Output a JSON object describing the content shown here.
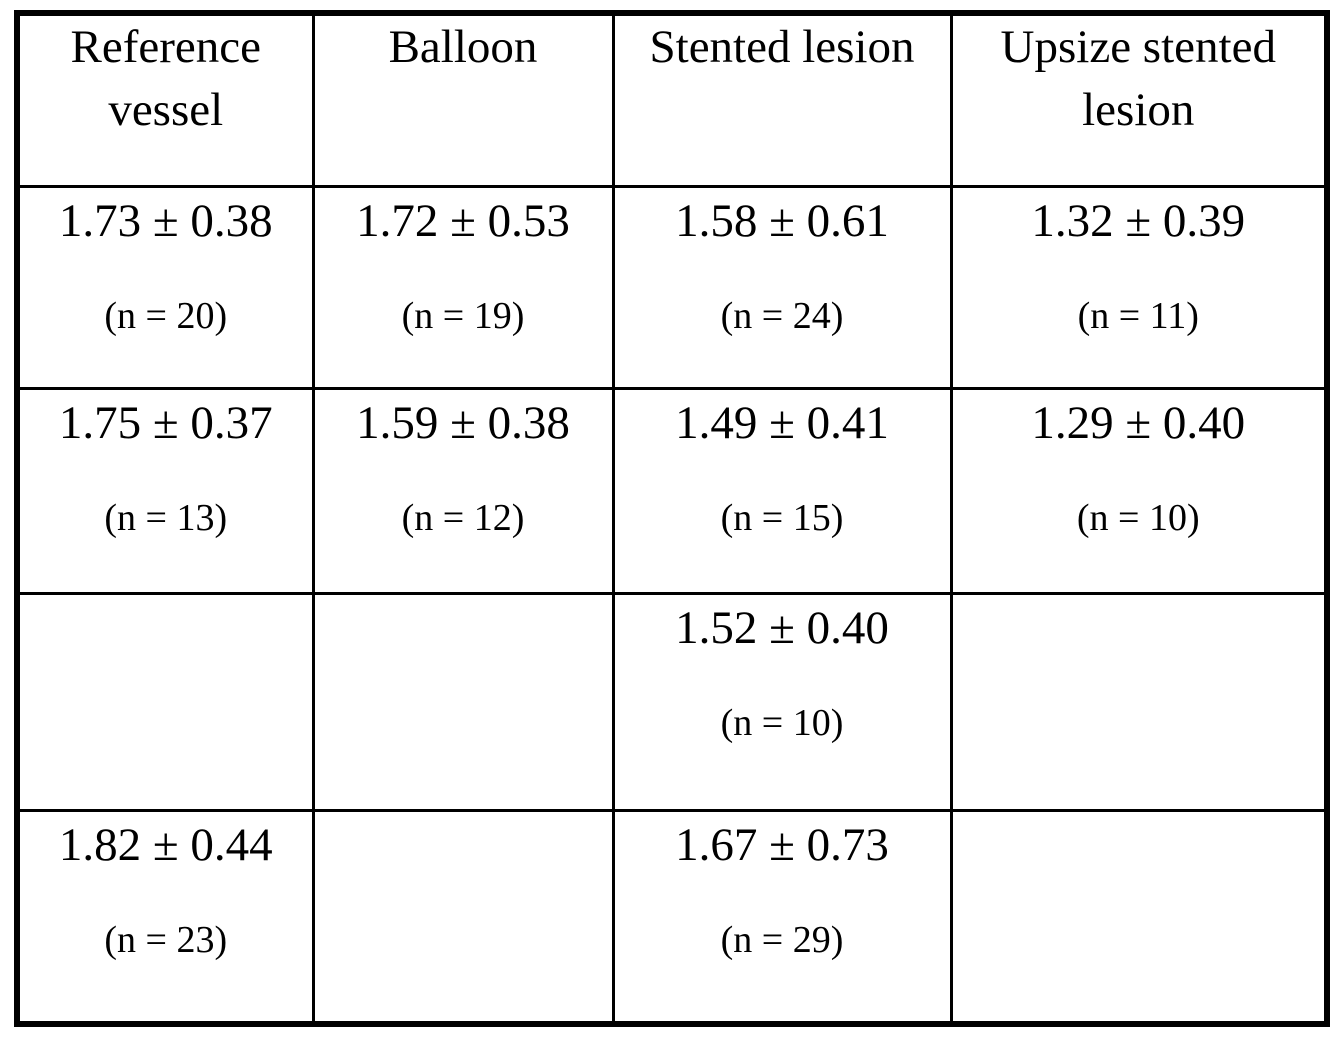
{
  "page": {
    "background_color": "#ffffff",
    "text_color": "#000000",
    "border_color": "#000000"
  },
  "table": {
    "headers": [
      "Reference\nvessel",
      "Balloon",
      "Stented lesion",
      "Upsize stented\nlesion"
    ],
    "rows": [
      {
        "cells": [
          {
            "value": "1.73 ± 0.38",
            "n": "(n = 20)"
          },
          {
            "value": "1.72 ± 0.53",
            "n": "(n = 19)"
          },
          {
            "value": "1.58 ± 0.61",
            "n": "(n = 24)"
          },
          {
            "value": "1.32 ± 0.39",
            "n": "(n = 11)"
          }
        ]
      },
      {
        "cells": [
          {
            "value": "1.75 ± 0.37",
            "n": "(n = 13)"
          },
          {
            "value": "1.59 ± 0.38",
            "n": "(n = 12)"
          },
          {
            "value": "1.49 ± 0.41",
            "n": "(n = 15)"
          },
          {
            "value": "1.29 ± 0.40",
            "n": "(n = 10)"
          }
        ]
      },
      {
        "cells": [
          {
            "value": "",
            "n": ""
          },
          {
            "value": "",
            "n": ""
          },
          {
            "value": "1.52 ± 0.40",
            "n": "(n = 10)"
          },
          {
            "value": "",
            "n": ""
          }
        ]
      },
      {
        "cells": [
          {
            "value": "1.82 ± 0.44",
            "n": "(n = 23)"
          },
          {
            "value": "",
            "n": ""
          },
          {
            "value": "1.67 ± 0.73",
            "n": "(n = 29)"
          },
          {
            "value": "",
            "n": ""
          }
        ]
      }
    ]
  }
}
